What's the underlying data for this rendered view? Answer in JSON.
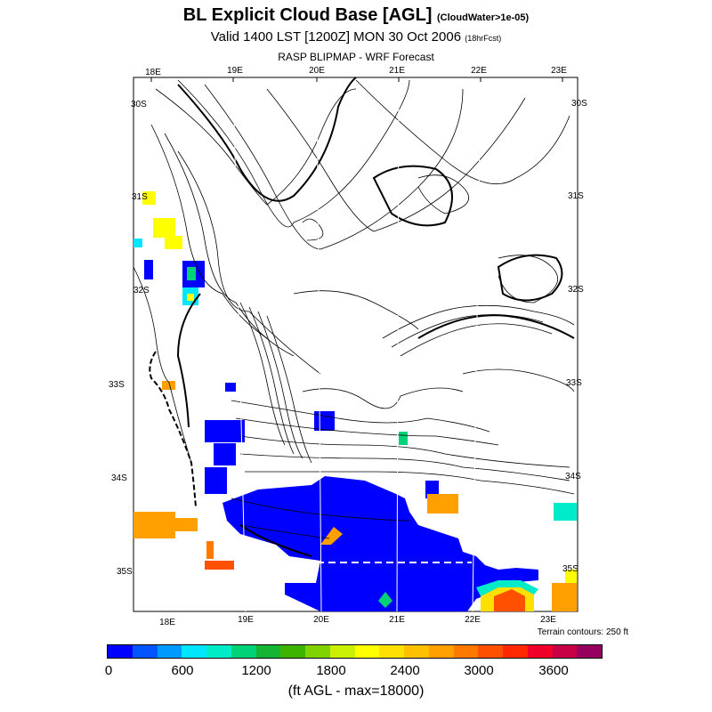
{
  "title": {
    "main": "BL Explicit Cloud Base [AGL]",
    "main_note": "(CloudWater>1e-05)",
    "valid": "Valid 1400 LST [1200Z] MON 30 Oct 2006",
    "valid_note": "(18hrFcst)",
    "model": "RASP BLIPMAP - WRF Forecast"
  },
  "map": {
    "lon_labels_top": [
      "18E",
      "19E",
      "20E",
      "21E",
      "22E",
      "23E"
    ],
    "lon_labels_bottom": [
      "18E",
      "19E",
      "20E",
      "21E",
      "22E",
      "23E"
    ],
    "lat_labels_left": [
      "30S",
      "31S",
      "32S",
      "33S",
      "34S",
      "35S"
    ],
    "lat_labels_right": [
      "30S",
      "31S",
      "32S",
      "33S",
      "34S",
      "35S"
    ],
    "terrain_note": "Terrain contours: 250 ft"
  },
  "colorbar": {
    "colors": [
      "#0000ff",
      "#0055ff",
      "#0099ff",
      "#00e6ff",
      "#00ebc8",
      "#00d278",
      "#16b435",
      "#3cb400",
      "#80d200",
      "#c8f000",
      "#ffff00",
      "#ffe000",
      "#ffc000",
      "#ffa000",
      "#ff7800",
      "#ff5000",
      "#ff2800",
      "#f00028",
      "#c80046",
      "#96005f"
    ],
    "labels": [
      "0",
      "600",
      "1200",
      "1800",
      "2400",
      "3000",
      "3600"
    ],
    "units_label": "(ft AGL - max=18000)"
  }
}
